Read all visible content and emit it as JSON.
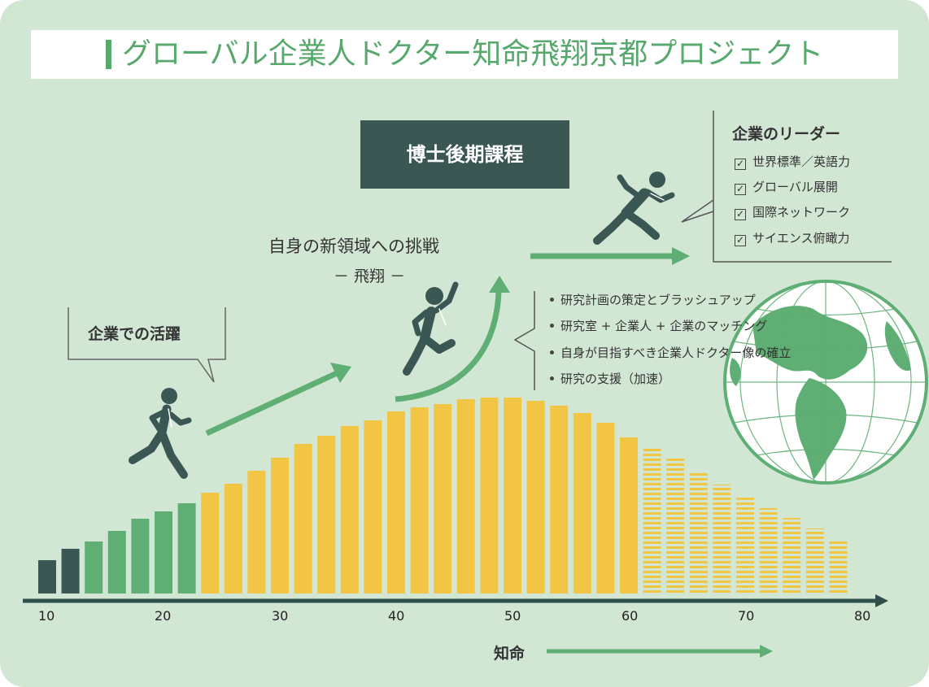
{
  "title": "グローバル企業人ドクター知命飛翔京都プロジェクト",
  "phd_label": "博士後期課程",
  "challenge": {
    "heading": "自身の新領域への挑戦",
    "subheading": "－ 飛翔 －"
  },
  "activity_label": "企業での活躍",
  "leader": {
    "title": "企業のリーダー",
    "items": [
      "世界標準／英語力",
      "グローバル展開",
      "国際ネットワーク",
      "サイエンス俯瞰力"
    ]
  },
  "support_items": [
    "研究計画の策定とブラッシュアップ",
    "研究室 + 企業人 + 企業のマッチング",
    "自身が目指すべき企業人ドクター像の確立",
    "研究の支援（加速）"
  ],
  "axis": {
    "label": "知命",
    "ticks": [
      "10",
      "20",
      "30",
      "40",
      "50",
      "60",
      "70",
      "80"
    ]
  },
  "colors": {
    "dark": "#3a5753",
    "green": "#5fae74",
    "yellow": "#f2c544",
    "background": "#d2e6d4"
  },
  "icons": [
    "runner-icon",
    "leaping-runner-icon",
    "sprinter-icon",
    "globe-icon",
    "checkbox-icon"
  ],
  "chart_data": {
    "type": "bar",
    "bar_heights": [
      41,
      55,
      64,
      77,
      92,
      101,
      111,
      124,
      135,
      151,
      167,
      184,
      194,
      206,
      213,
      224,
      229,
      233,
      239,
      241,
      241,
      237,
      231,
      222,
      210,
      192,
      178,
      168,
      150,
      134,
      120,
      105,
      93,
      80,
      64
    ],
    "phases": [
      "dark",
      "dark",
      "green",
      "green",
      "green",
      "green",
      "green",
      "yellow",
      "yellow",
      "yellow",
      "yellow",
      "yellow",
      "yellow",
      "yellow",
      "yellow",
      "yellow",
      "yellow",
      "yellow",
      "yellow",
      "yellow",
      "yellow",
      "yellow",
      "yellow",
      "yellow",
      "yellow",
      "yellow",
      "striped",
      "striped",
      "striped",
      "striped",
      "striped",
      "striped",
      "striped",
      "striped",
      "striped"
    ],
    "xlim": [
      10,
      80
    ]
  }
}
